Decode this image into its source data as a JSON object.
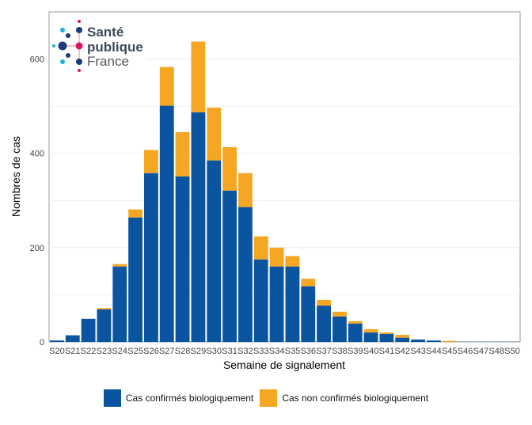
{
  "logo": {
    "line1": "Santé",
    "line2": "publique",
    "line3": "France"
  },
  "chart_data": {
    "type": "bar",
    "stacked": true,
    "xlabel": "Semaine de signalement",
    "ylabel": "Nombres de cas",
    "ylim": [
      0,
      700
    ],
    "yticks": [
      0,
      200,
      400,
      600
    ],
    "grid": true,
    "legend_position": "bottom",
    "categories": [
      "S20",
      "S21",
      "S22",
      "S23",
      "S24",
      "S25",
      "S26",
      "S27",
      "S28",
      "S29",
      "S30",
      "S31",
      "S32",
      "S33",
      "S34",
      "S35",
      "S36",
      "S37",
      "S38",
      "S39",
      "S40",
      "S41",
      "S42",
      "S43",
      "S44",
      "S45",
      "S46",
      "S47",
      "S48",
      "S50"
    ],
    "series": [
      {
        "name": "Cas confirmés biologiquement",
        "color": "#0b55a0",
        "values": [
          3,
          14,
          49,
          69,
          160,
          264,
          358,
          501,
          351,
          487,
          385,
          321,
          286,
          175,
          160,
          160,
          118,
          77,
          54,
          39,
          20,
          17,
          9,
          5,
          3,
          0,
          0.5,
          0.5,
          0.5,
          0.5
        ]
      },
      {
        "name": "Cas non confirmés biologiquement",
        "color": "#f5a623",
        "values": [
          0,
          0,
          0,
          3,
          5,
          17,
          49,
          82,
          94,
          150,
          112,
          92,
          72,
          49,
          40,
          22,
          16,
          12,
          10,
          5,
          7,
          3,
          6,
          0,
          0,
          2,
          0,
          0,
          0,
          0
        ]
      }
    ]
  }
}
